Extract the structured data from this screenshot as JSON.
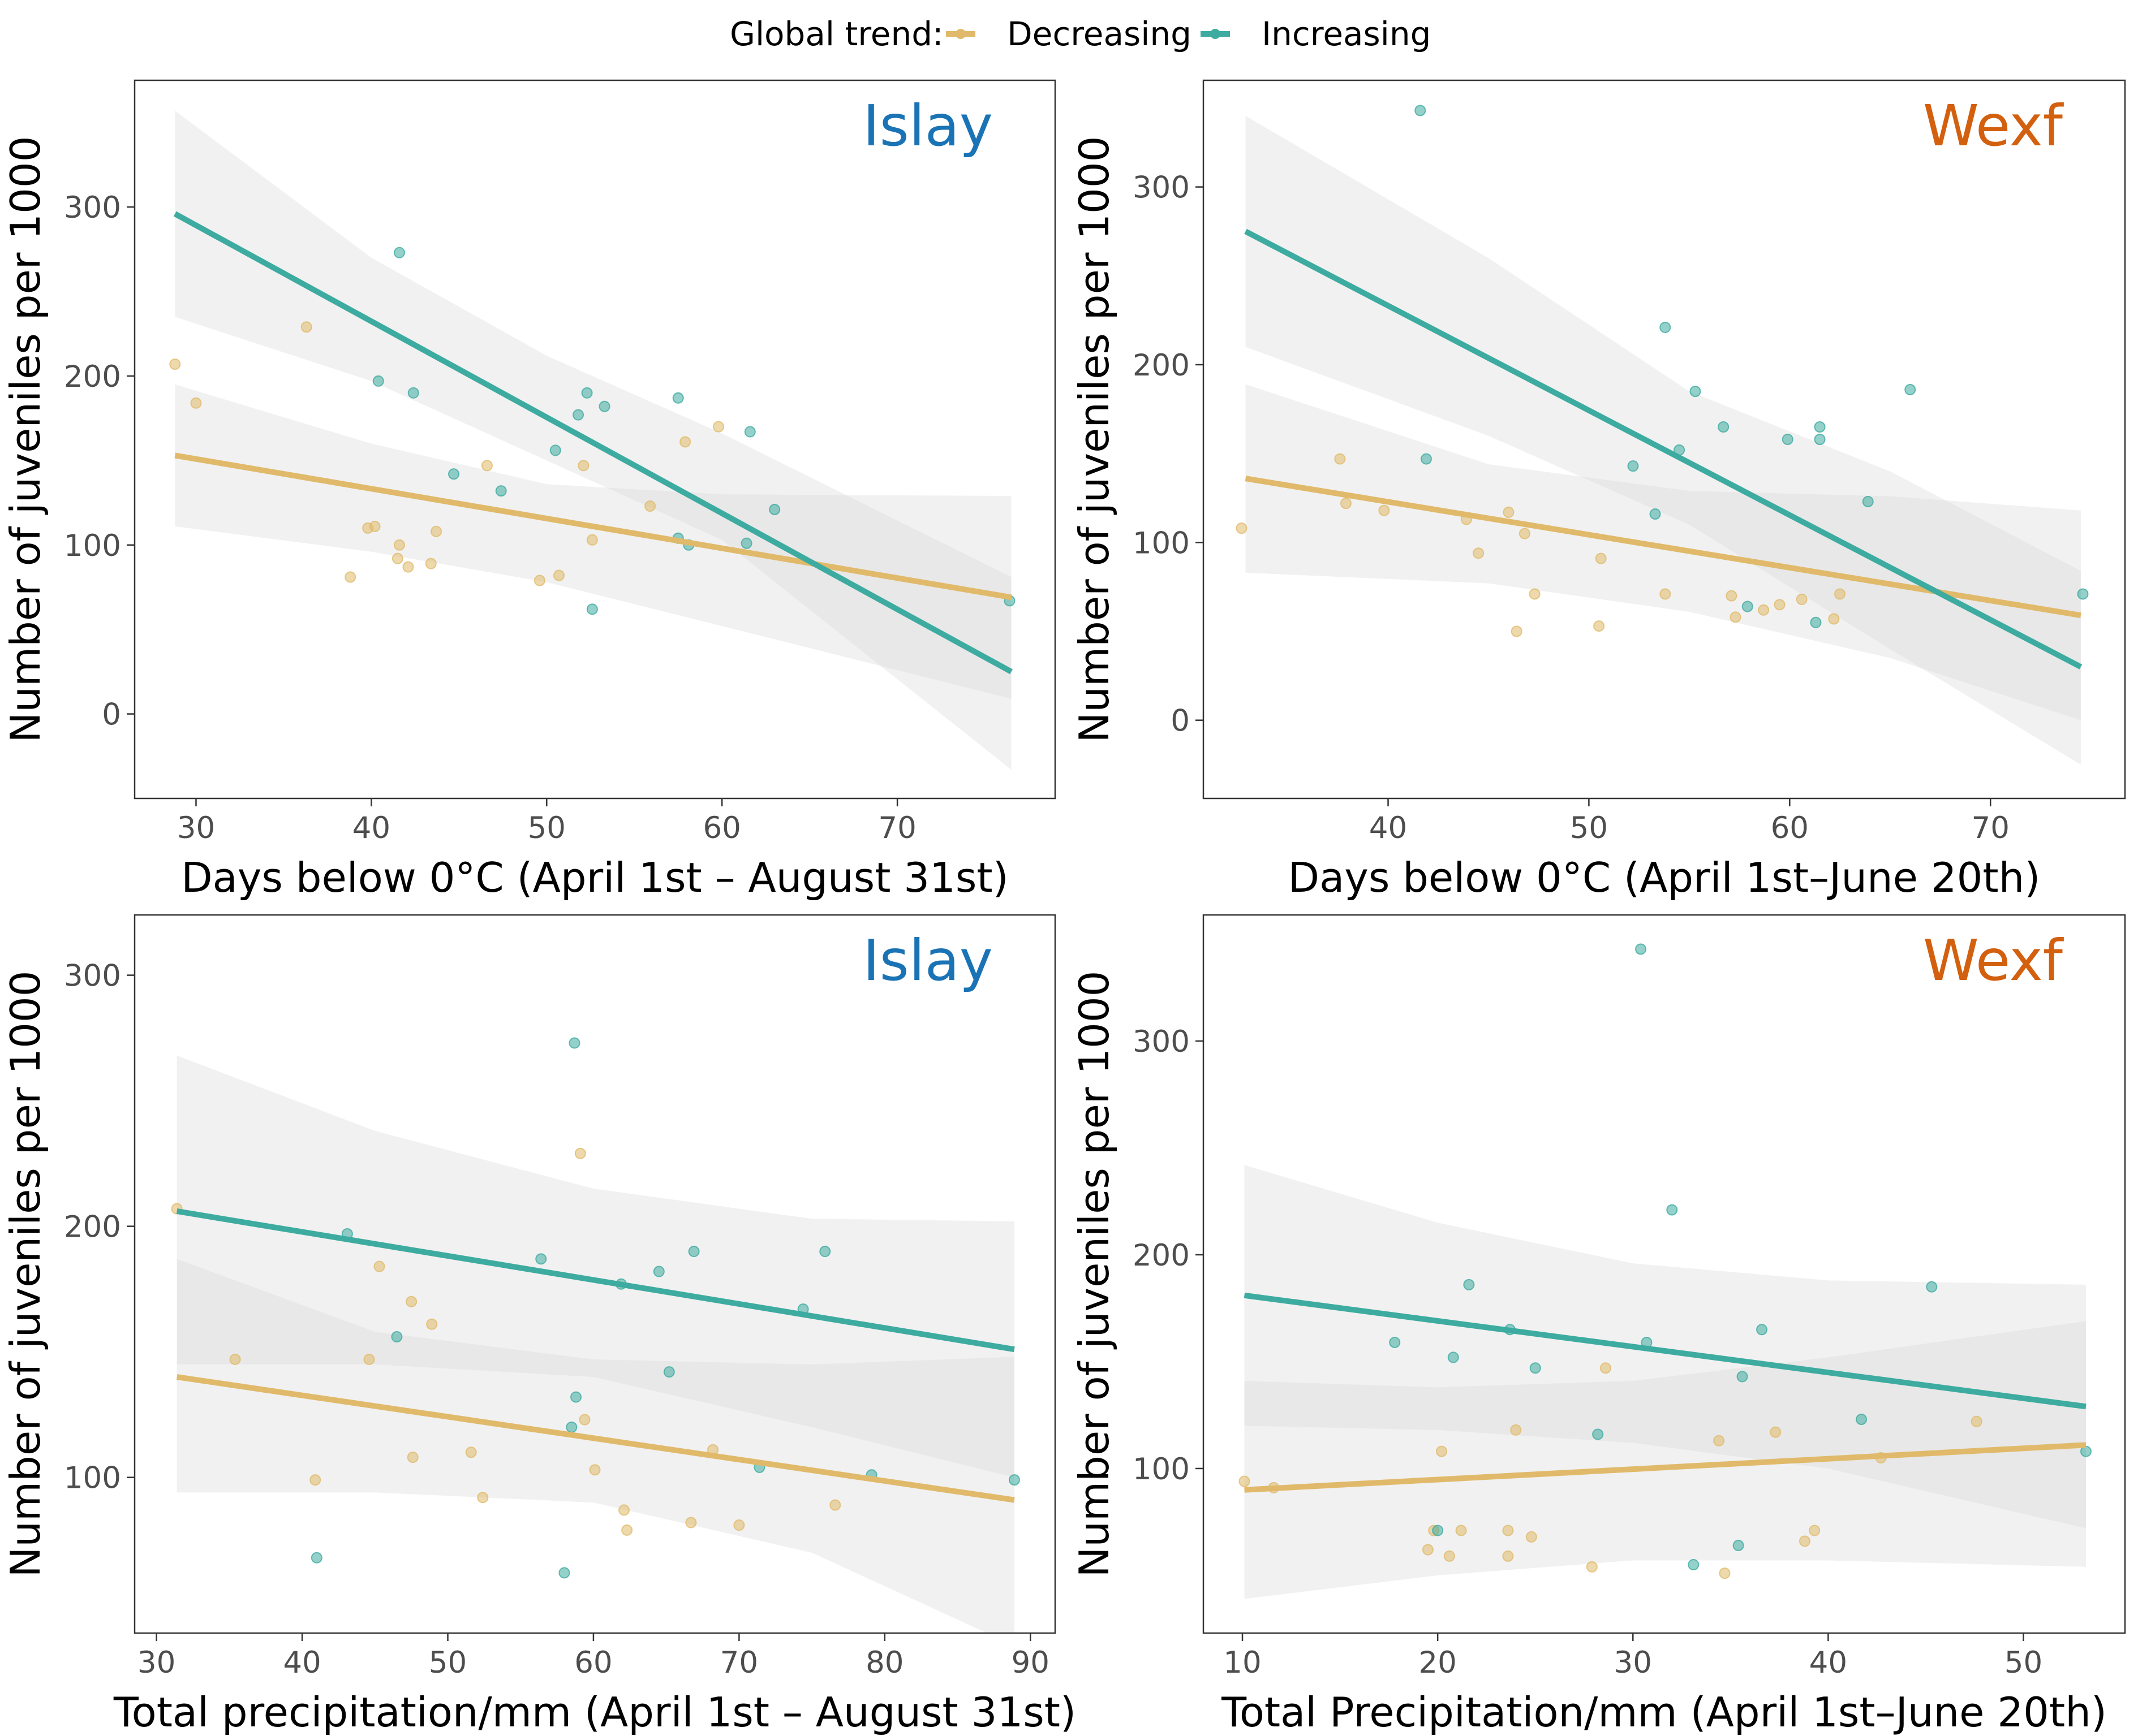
{
  "legend": {
    "title": "Global trend:",
    "position": "top",
    "entries": [
      {
        "label": "Decreasing",
        "color": "#e0ba6a"
      },
      {
        "label": "Increasing",
        "color": "#3eaba0"
      }
    ]
  },
  "colors": {
    "Decreasing": "#e0ba6a",
    "Increasing": "#3eaba0",
    "ribbon": "#dcdcdc",
    "Islay": "#1a73b5",
    "Wexf": "#d3600f"
  },
  "chart_data": [
    {
      "type": "scatter",
      "site": "Islay",
      "xlabel": "Days below 0°C (April 1st – August 31st)",
      "ylabel": "Number of juveniles per 1000",
      "xlim": [
        26.5,
        79
      ],
      "ylim": [
        -50,
        375
      ],
      "xticks": [
        30,
        40,
        50,
        60,
        70
      ],
      "yticks": [
        0,
        100,
        200,
        300
      ],
      "grid": false,
      "series": [
        {
          "name": "Decreasing",
          "points": [
            [
              28.8,
              207
            ],
            [
              30,
              184
            ],
            [
              36.3,
              229
            ],
            [
              38.8,
              81
            ],
            [
              39.8,
              110
            ],
            [
              40.2,
              111
            ],
            [
              41.5,
              92
            ],
            [
              41.6,
              100
            ],
            [
              42.1,
              87
            ],
            [
              43.4,
              89
            ],
            [
              43.7,
              108
            ],
            [
              46.6,
              147
            ],
            [
              49.6,
              79
            ],
            [
              50.7,
              82
            ],
            [
              52.1,
              147
            ],
            [
              52.6,
              103
            ],
            [
              55.9,
              123
            ],
            [
              57.9,
              161
            ],
            [
              59.8,
              170
            ]
          ],
          "fit": {
            "x": [
              28.8,
              76.5
            ],
            "y": [
              153,
              69
            ]
          },
          "ci": {
            "x": [
              28.8,
              40,
              50,
              60,
              76.5
            ],
            "lower": [
              111,
              96,
              78,
              52,
              9
            ],
            "upper": [
              195,
              160,
              136,
              130,
              129
            ]
          }
        },
        {
          "name": "Increasing",
          "points": [
            [
              40.4,
              197
            ],
            [
              41.6,
              273
            ],
            [
              42.4,
              190
            ],
            [
              44.7,
              142
            ],
            [
              47.4,
              132
            ],
            [
              50.5,
              156
            ],
            [
              51.8,
              177
            ],
            [
              52.3,
              190
            ],
            [
              52.6,
              62
            ],
            [
              53.3,
              182
            ],
            [
              57.5,
              187
            ],
            [
              57.5,
              104
            ],
            [
              58.1,
              100
            ],
            [
              61.4,
              101
            ],
            [
              61.6,
              167
            ],
            [
              63,
              121
            ],
            [
              76.4,
              67
            ]
          ],
          "fit": {
            "x": [
              28.8,
              76.5
            ],
            "y": [
              296,
              25
            ]
          },
          "ci": {
            "x": [
              28.8,
              40,
              50,
              60,
              76.5
            ],
            "lower": [
              235,
              197,
              150,
              103,
              -33
            ],
            "upper": [
              357,
              270,
              212,
              166,
              81
            ]
          }
        }
      ]
    },
    {
      "type": "scatter",
      "site": "Wexf",
      "xlabel": "Days below 0°C (April 1st–June 20th)",
      "ylabel": "Number of juveniles per 1000",
      "xlim": [
        30.8,
        76.7
      ],
      "ylim": [
        -44,
        360
      ],
      "xticks": [
        40,
        50,
        60,
        70
      ],
      "yticks": [
        0,
        100,
        200,
        300
      ],
      "grid": false,
      "series": [
        {
          "name": "Decreasing",
          "points": [
            [
              32.7,
              108
            ],
            [
              37.6,
              147
            ],
            [
              37.9,
              122
            ],
            [
              39.8,
              118
            ],
            [
              43.9,
              113
            ],
            [
              44.5,
              94
            ],
            [
              46,
              117
            ],
            [
              46.8,
              105
            ],
            [
              47.3,
              71
            ],
            [
              46.4,
              50
            ],
            [
              50.5,
              53
            ],
            [
              50.6,
              91
            ],
            [
              53.8,
              71
            ],
            [
              57.1,
              70
            ],
            [
              57.3,
              58
            ],
            [
              59.5,
              65
            ],
            [
              58.7,
              62
            ],
            [
              60.6,
              68
            ],
            [
              62.2,
              57
            ],
            [
              62.5,
              71
            ]
          ],
          "fit": {
            "x": [
              32.9,
              74.5
            ],
            "y": [
              136,
              59
            ]
          },
          "ci": {
            "x": [
              32.9,
              45,
              55,
              65,
              74.5
            ],
            "lower": [
              83,
              77,
              61,
              35,
              0
            ],
            "upper": [
              189,
              144,
              129,
              126,
              118
            ]
          }
        },
        {
          "name": "Increasing",
          "points": [
            [
              41.6,
              343
            ],
            [
              41.9,
              147
            ],
            [
              52.2,
              143
            ],
            [
              53.3,
              116
            ],
            [
              53.8,
              221
            ],
            [
              54.5,
              152
            ],
            [
              55.3,
              185
            ],
            [
              56.7,
              165
            ],
            [
              57.9,
              64
            ],
            [
              59.9,
              158
            ],
            [
              61.3,
              55
            ],
            [
              61.5,
              158
            ],
            [
              61.5,
              165
            ],
            [
              63.9,
              123
            ],
            [
              66,
              186
            ],
            [
              74.6,
              71
            ]
          ],
          "fit": {
            "x": [
              32.9,
              74.5
            ],
            "y": [
              275,
              30
            ]
          },
          "ci": {
            "x": [
              32.9,
              45,
              55,
              65,
              74.5
            ],
            "lower": [
              210,
              160,
              110,
              40,
              -25
            ],
            "upper": [
              340,
              260,
              185,
              140,
              84
            ]
          }
        }
      ]
    },
    {
      "type": "scatter",
      "site": "Islay",
      "xlabel": "Total precipitation/mm (April 1st – August 31st)",
      "ylabel": "Number of juveniles per 1000",
      "xlim": [
        28.5,
        91.7
      ],
      "ylim": [
        38,
        324
      ],
      "xticks": [
        30,
        40,
        50,
        60,
        70,
        80,
        90
      ],
      "yticks": [
        100,
        200,
        300
      ],
      "grid": false,
      "series": [
        {
          "name": "Decreasing",
          "points": [
            [
              31.4,
              207
            ],
            [
              35.4,
              147
            ],
            [
              40.9,
              99
            ],
            [
              44.6,
              147
            ],
            [
              45.3,
              184
            ],
            [
              47.5,
              170
            ],
            [
              47.6,
              108
            ],
            [
              48.9,
              161
            ],
            [
              51.6,
              110
            ],
            [
              52.4,
              92
            ],
            [
              59.1,
              229
            ],
            [
              59.4,
              123
            ],
            [
              60.1,
              103
            ],
            [
              62.1,
              87
            ],
            [
              62.3,
              79
            ],
            [
              66.7,
              82
            ],
            [
              68.2,
              111
            ],
            [
              70,
              81
            ],
            [
              76.6,
              89
            ]
          ],
          "fit": {
            "x": [
              31.4,
              88.9
            ],
            "y": [
              140,
              91
            ]
          },
          "ci": {
            "x": [
              31.4,
              45,
              60,
              75,
              88.9
            ],
            "lower": [
              94,
              94,
              90,
              70,
              33
            ],
            "upper": [
              187,
              158,
              147,
              145,
              148
            ]
          }
        },
        {
          "name": "Increasing",
          "points": [
            [
              41,
              68
            ],
            [
              43.1,
              197
            ],
            [
              46.5,
              156
            ],
            [
              56.4,
              187
            ],
            [
              58,
              62
            ],
            [
              58.5,
              120
            ],
            [
              58.7,
              273
            ],
            [
              58.8,
              132
            ],
            [
              61.9,
              177
            ],
            [
              64.5,
              182
            ],
            [
              65.2,
              142
            ],
            [
              66.9,
              190
            ],
            [
              71.4,
              104
            ],
            [
              74.4,
              167
            ],
            [
              75.9,
              190
            ],
            [
              79.1,
              101
            ],
            [
              88.9,
              99
            ]
          ],
          "fit": {
            "x": [
              31.4,
              88.9
            ],
            "y": [
              206,
              151
            ]
          },
          "ci": {
            "x": [
              31.4,
              45,
              60,
              75,
              88.9
            ],
            "lower": [
              145,
              145,
              140,
              120,
              100
            ],
            "upper": [
              268,
              238,
              215,
              203,
              202
            ]
          }
        }
      ]
    },
    {
      "type": "scatter",
      "site": "Wexf",
      "xlabel": "Total Precipitation/mm (April 1st–June 20th)",
      "ylabel": "Number of juveniles per 1000",
      "xlim": [
        8,
        55.2
      ],
      "ylim": [
        23,
        359
      ],
      "xticks": [
        10,
        20,
        30,
        40,
        50
      ],
      "yticks": [
        100,
        200,
        300
      ],
      "grid": false,
      "series": [
        {
          "name": "Decreasing",
          "points": [
            [
              10.1,
              94
            ],
            [
              11.6,
              91
            ],
            [
              19.5,
              62
            ],
            [
              19.8,
              71
            ],
            [
              20.2,
              108
            ],
            [
              20.6,
              59
            ],
            [
              21.2,
              71
            ],
            [
              23.6,
              71
            ],
            [
              23.6,
              59
            ],
            [
              24,
              118
            ],
            [
              24.8,
              68
            ],
            [
              27.9,
              54
            ],
            [
              28.6,
              147
            ],
            [
              34.4,
              113
            ],
            [
              34.7,
              51
            ],
            [
              37.3,
              117
            ],
            [
              38.8,
              66
            ],
            [
              39.3,
              71
            ],
            [
              42.7,
              105
            ],
            [
              47.6,
              122
            ]
          ],
          "fit": {
            "x": [
              10.1,
              53.2
            ],
            "y": [
              90,
              111
            ]
          },
          "ci": {
            "x": [
              10.1,
              20,
              30,
              40,
              53.2
            ],
            "lower": [
              39,
              50,
              57,
              57,
              54
            ],
            "upper": [
              141,
              138,
              141,
              152,
              169
            ]
          }
        },
        {
          "name": "Increasing",
          "points": [
            [
              17.8,
              159
            ],
            [
              20,
              71
            ],
            [
              20.8,
              152
            ],
            [
              21.6,
              186
            ],
            [
              23.7,
              165
            ],
            [
              25,
              147
            ],
            [
              28.2,
              116
            ],
            [
              30.4,
              343
            ],
            [
              30.7,
              159
            ],
            [
              32,
              221
            ],
            [
              33.1,
              55
            ],
            [
              35.4,
              64
            ],
            [
              35.6,
              143
            ],
            [
              36.6,
              165
            ],
            [
              41.7,
              123
            ],
            [
              45.3,
              185
            ],
            [
              53.2,
              108
            ]
          ],
          "fit": {
            "x": [
              10.1,
              53.2
            ],
            "y": [
              181,
              129
            ]
          },
          "ci": {
            "x": [
              10.1,
              20,
              30,
              40,
              53.2
            ],
            "lower": [
              120,
              118,
              112,
              100,
              72
            ],
            "upper": [
              242,
              215,
              196,
              188,
              186
            ]
          }
        }
      ]
    }
  ]
}
